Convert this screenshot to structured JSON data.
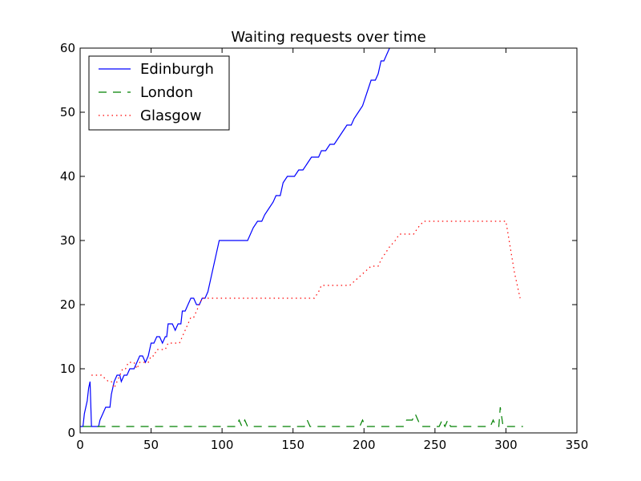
{
  "chart_data": {
    "type": "line",
    "title": "Waiting requests over time",
    "xlabel": "",
    "ylabel": "",
    "xlim": [
      0,
      350
    ],
    "ylim": [
      0,
      60
    ],
    "xticks": [
      0,
      50,
      100,
      150,
      200,
      250,
      300,
      350
    ],
    "yticks": [
      0,
      10,
      20,
      30,
      40,
      50,
      60
    ],
    "grid": false,
    "legend_position": "top-left",
    "series": [
      {
        "name": "Edinburgh",
        "color": "#0000ff",
        "style": "solid",
        "points": [
          [
            0,
            1
          ],
          [
            2,
            1
          ],
          [
            3,
            3
          ],
          [
            5,
            5
          ],
          [
            6,
            7
          ],
          [
            7,
            8
          ],
          [
            8,
            1
          ],
          [
            13,
            1
          ],
          [
            14,
            2
          ],
          [
            16,
            3
          ],
          [
            18,
            4
          ],
          [
            21,
            4
          ],
          [
            22,
            6
          ],
          [
            24,
            8
          ],
          [
            26,
            9
          ],
          [
            28,
            9
          ],
          [
            29,
            8
          ],
          [
            31,
            9
          ],
          [
            33,
            9
          ],
          [
            35,
            10
          ],
          [
            38,
            10
          ],
          [
            40,
            11
          ],
          [
            42,
            12
          ],
          [
            44,
            12
          ],
          [
            46,
            11
          ],
          [
            48,
            12
          ],
          [
            50,
            14
          ],
          [
            52,
            14
          ],
          [
            54,
            15
          ],
          [
            56,
            15
          ],
          [
            58,
            14
          ],
          [
            60,
            15
          ],
          [
            61,
            15
          ],
          [
            62,
            17
          ],
          [
            65,
            17
          ],
          [
            67,
            16
          ],
          [
            69,
            17
          ],
          [
            71,
            17
          ],
          [
            72,
            19
          ],
          [
            74,
            19
          ],
          [
            76,
            20
          ],
          [
            78,
            21
          ],
          [
            80,
            21
          ],
          [
            82,
            20
          ],
          [
            84,
            20
          ],
          [
            86,
            21
          ],
          [
            88,
            21
          ],
          [
            90,
            22
          ],
          [
            92,
            24
          ],
          [
            94,
            26
          ],
          [
            96,
            28
          ],
          [
            98,
            30
          ],
          [
            118,
            30
          ],
          [
            120,
            31
          ],
          [
            122,
            32
          ],
          [
            125,
            33
          ],
          [
            128,
            33
          ],
          [
            130,
            34
          ],
          [
            133,
            35
          ],
          [
            136,
            36
          ],
          [
            138,
            37
          ],
          [
            141,
            37
          ],
          [
            143,
            39
          ],
          [
            146,
            40
          ],
          [
            151,
            40
          ],
          [
            154,
            41
          ],
          [
            157,
            41
          ],
          [
            160,
            42
          ],
          [
            163,
            43
          ],
          [
            165,
            43
          ],
          [
            168,
            43
          ],
          [
            170,
            44
          ],
          [
            173,
            44
          ],
          [
            176,
            45
          ],
          [
            179,
            45
          ],
          [
            182,
            46
          ],
          [
            185,
            47
          ],
          [
            188,
            48
          ],
          [
            191,
            48
          ],
          [
            193,
            49
          ],
          [
            196,
            50
          ],
          [
            199,
            51
          ],
          [
            202,
            53
          ],
          [
            205,
            55
          ],
          [
            208,
            55
          ],
          [
            210,
            56
          ],
          [
            212,
            58
          ],
          [
            214,
            58
          ],
          [
            216,
            59
          ],
          [
            218,
            60
          ]
        ]
      },
      {
        "name": "London",
        "color": "#008000",
        "style": "dashed",
        "points": [
          [
            2,
            1
          ],
          [
            110,
            1
          ],
          [
            112,
            2
          ],
          [
            114,
            1
          ],
          [
            116,
            2
          ],
          [
            118,
            1
          ],
          [
            158,
            1
          ],
          [
            160,
            2
          ],
          [
            162,
            1
          ],
          [
            197,
            1
          ],
          [
            199,
            2
          ],
          [
            201,
            1
          ],
          [
            228,
            1
          ],
          [
            230,
            2
          ],
          [
            232,
            2
          ],
          [
            234,
            2
          ],
          [
            236,
            3
          ],
          [
            238,
            2
          ],
          [
            240,
            1
          ],
          [
            245,
            1
          ],
          [
            253,
            1
          ],
          [
            255,
            2
          ],
          [
            257,
            1
          ],
          [
            259,
            2
          ],
          [
            261,
            1
          ],
          [
            263,
            1
          ],
          [
            289,
            1
          ],
          [
            291,
            2
          ],
          [
            293,
            1
          ],
          [
            295,
            1
          ],
          [
            296,
            4
          ],
          [
            298,
            1
          ],
          [
            312,
            1
          ]
        ]
      },
      {
        "name": "Glasgow",
        "color": "#ff0000",
        "style": "dotted",
        "points": [
          [
            8,
            9
          ],
          [
            15,
            9
          ],
          [
            20,
            8
          ],
          [
            22,
            8
          ],
          [
            24,
            7
          ],
          [
            26,
            8
          ],
          [
            28,
            9
          ],
          [
            30,
            10
          ],
          [
            32,
            10
          ],
          [
            34,
            11
          ],
          [
            38,
            11
          ],
          [
            40,
            10
          ],
          [
            42,
            11
          ],
          [
            46,
            11
          ],
          [
            48,
            11
          ],
          [
            50,
            12
          ],
          [
            52,
            12
          ],
          [
            54,
            13
          ],
          [
            58,
            13
          ],
          [
            60,
            13
          ],
          [
            62,
            14
          ],
          [
            64,
            14
          ],
          [
            66,
            14
          ],
          [
            68,
            14
          ],
          [
            70,
            14
          ],
          [
            72,
            15
          ],
          [
            74,
            16
          ],
          [
            76,
            17
          ],
          [
            78,
            18
          ],
          [
            80,
            18
          ],
          [
            82,
            19
          ],
          [
            84,
            20
          ],
          [
            86,
            21
          ],
          [
            90,
            21
          ],
          [
            100,
            21
          ],
          [
            110,
            21
          ],
          [
            120,
            21
          ],
          [
            130,
            21
          ],
          [
            150,
            21
          ],
          [
            160,
            21
          ],
          [
            165,
            21
          ],
          [
            168,
            22
          ],
          [
            170,
            23
          ],
          [
            175,
            23
          ],
          [
            185,
            23
          ],
          [
            190,
            23
          ],
          [
            195,
            24
          ],
          [
            200,
            25
          ],
          [
            205,
            26
          ],
          [
            210,
            26
          ],
          [
            212,
            27
          ],
          [
            215,
            28
          ],
          [
            218,
            29
          ],
          [
            222,
            30
          ],
          [
            225,
            31
          ],
          [
            230,
            31
          ],
          [
            235,
            31
          ],
          [
            238,
            32
          ],
          [
            242,
            33
          ],
          [
            255,
            33
          ],
          [
            280,
            33
          ],
          [
            300,
            33
          ],
          [
            303,
            29
          ],
          [
            306,
            25
          ],
          [
            310,
            21
          ]
        ]
      }
    ]
  }
}
